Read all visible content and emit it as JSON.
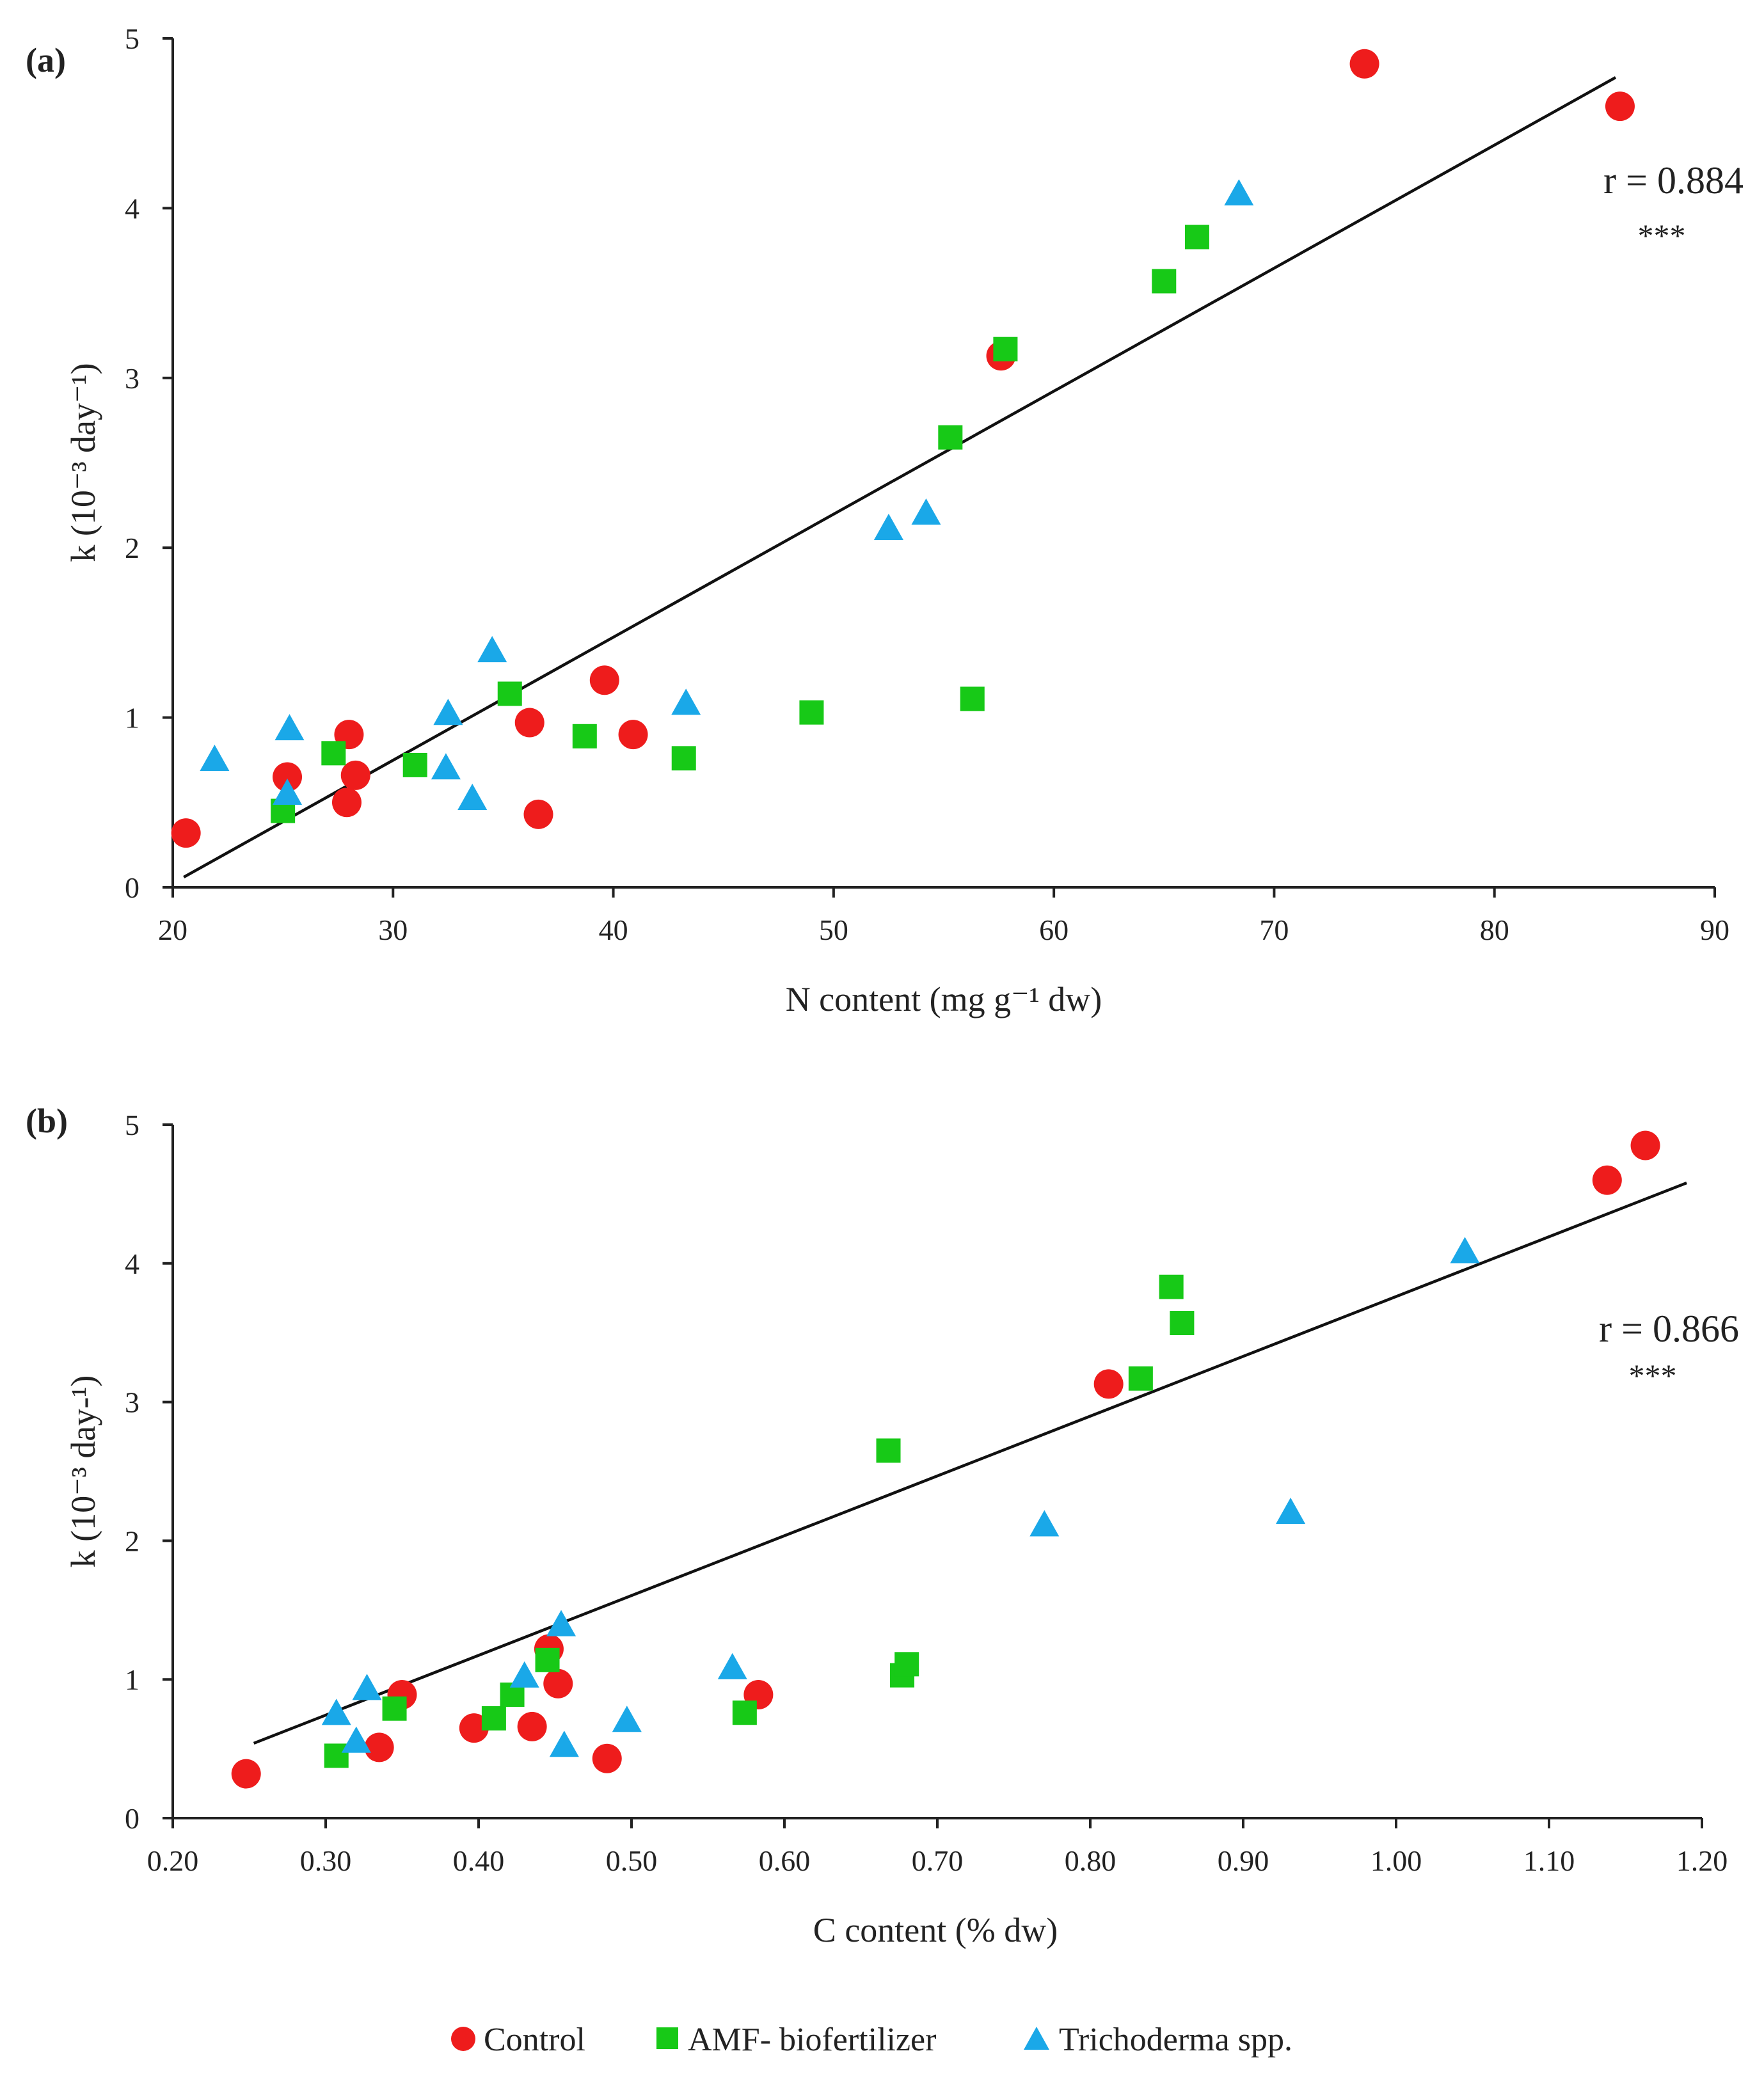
{
  "legend": [
    {
      "name": "Control",
      "marker": "circle",
      "color": "#ee1c1c"
    },
    {
      "name": "AMF- biofertilizer",
      "marker": "square",
      "color": "#17c917"
    },
    {
      "name": "Trichoderma spp.",
      "marker": "triangle",
      "color": "#1aa8e8"
    }
  ],
  "chart_data": [
    {
      "type": "scatter",
      "panel_label": "(a)",
      "xlabel": "N content (mg g⁻¹ dw)",
      "ylabel": "k (10⁻³ day⁻¹)",
      "xlim": [
        20,
        90
      ],
      "ylim": [
        0,
        5
      ],
      "xticks": [
        "20",
        "30",
        "40",
        "50",
        "60",
        "70",
        "80",
        "90"
      ],
      "yticks": [
        "0",
        "1",
        "2",
        "3",
        "4",
        "5"
      ],
      "grid": false,
      "annotation": {
        "r": "r = 0.884",
        "significance": "***"
      },
      "trendline": [
        [
          20.5,
          0.06
        ],
        [
          85.5,
          4.77
        ]
      ],
      "series": [
        {
          "name": "Control",
          "points": [
            [
              20.6,
              0.32
            ],
            [
              25.2,
              0.65
            ],
            [
              27.9,
              0.5
            ],
            [
              28,
              0.9
            ],
            [
              28.3,
              0.66
            ],
            [
              36.2,
              0.97
            ],
            [
              36.6,
              0.43
            ],
            [
              39.6,
              1.22
            ],
            [
              40.9,
              0.9
            ],
            [
              57.6,
              3.13
            ],
            [
              74.1,
              4.85
            ],
            [
              85.7,
              4.6
            ]
          ]
        },
        {
          "name": "AMF- biofertilizer",
          "points": [
            [
              25,
              0.45
            ],
            [
              27.3,
              0.79
            ],
            [
              31,
              0.72
            ],
            [
              35.3,
              1.14
            ],
            [
              38.7,
              0.89
            ],
            [
              43.2,
              0.76
            ],
            [
              49,
              1.03
            ],
            [
              55.3,
              2.65
            ],
            [
              56.3,
              1.11
            ],
            [
              57.8,
              3.17
            ],
            [
              65,
              3.57
            ],
            [
              66.5,
              3.83
            ]
          ]
        },
        {
          "name": "Trichoderma spp.",
          "points": [
            [
              21.9,
              0.75
            ],
            [
              25.2,
              0.55
            ],
            [
              25.3,
              0.93
            ],
            [
              32.4,
              0.7
            ],
            [
              32.5,
              1.02
            ],
            [
              33.6,
              0.52
            ],
            [
              34.5,
              1.39
            ],
            [
              43.3,
              1.08
            ],
            [
              52.5,
              2.11
            ],
            [
              54.2,
              2.2
            ],
            [
              68.4,
              4.08
            ]
          ]
        }
      ]
    },
    {
      "type": "scatter",
      "panel_label": "(b)",
      "xlabel": "C content (% dw)",
      "ylabel": "k (10⁻³ day-¹)",
      "xlim": [
        0.2,
        1.2
      ],
      "ylim": [
        0,
        5
      ],
      "xticks": [
        "0.20",
        "0.30",
        "0.40",
        "0.50",
        "0.60",
        "0.70",
        "0.80",
        "0.90",
        "1.00",
        "1.10",
        "1.20"
      ],
      "yticks": [
        "0",
        "1",
        "2",
        "3",
        "4",
        "5"
      ],
      "grid": false,
      "annotation": {
        "r": "r = 0.866",
        "significance": "***"
      },
      "trendline": [
        [
          0.253,
          0.54
        ],
        [
          1.19,
          4.58
        ]
      ],
      "series": [
        {
          "name": "Control",
          "points": [
            [
              0.248,
              0.32
            ],
            [
              0.335,
              0.51
            ],
            [
              0.35,
              0.89
            ],
            [
              0.397,
              0.65
            ],
            [
              0.435,
              0.66
            ],
            [
              0.446,
              1.22
            ],
            [
              0.452,
              0.97
            ],
            [
              0.484,
              0.43
            ],
            [
              0.583,
              0.89
            ],
            [
              0.812,
              3.13
            ],
            [
              1.138,
              4.6
            ],
            [
              1.163,
              4.85
            ]
          ]
        },
        {
          "name": "AMF- biofertilizer",
          "points": [
            [
              0.307,
              0.45
            ],
            [
              0.345,
              0.79
            ],
            [
              0.41,
              0.72
            ],
            [
              0.422,
              0.89
            ],
            [
              0.445,
              1.14
            ],
            [
              0.574,
              0.76
            ],
            [
              0.668,
              2.65
            ],
            [
              0.677,
              1.03
            ],
            [
              0.68,
              1.11
            ],
            [
              0.833,
              3.17
            ],
            [
              0.853,
              3.83
            ],
            [
              0.86,
              3.57
            ]
          ]
        },
        {
          "name": "Trichoderma spp.",
          "points": [
            [
              0.307,
              0.75
            ],
            [
              0.32,
              0.55
            ],
            [
              0.327,
              0.93
            ],
            [
              0.43,
              1.02
            ],
            [
              0.456,
              0.52
            ],
            [
              0.454,
              1.39
            ],
            [
              0.497,
              0.7
            ],
            [
              0.566,
              1.08
            ],
            [
              0.77,
              2.11
            ],
            [
              0.931,
              2.2
            ],
            [
              1.045,
              4.08
            ]
          ]
        }
      ]
    }
  ]
}
